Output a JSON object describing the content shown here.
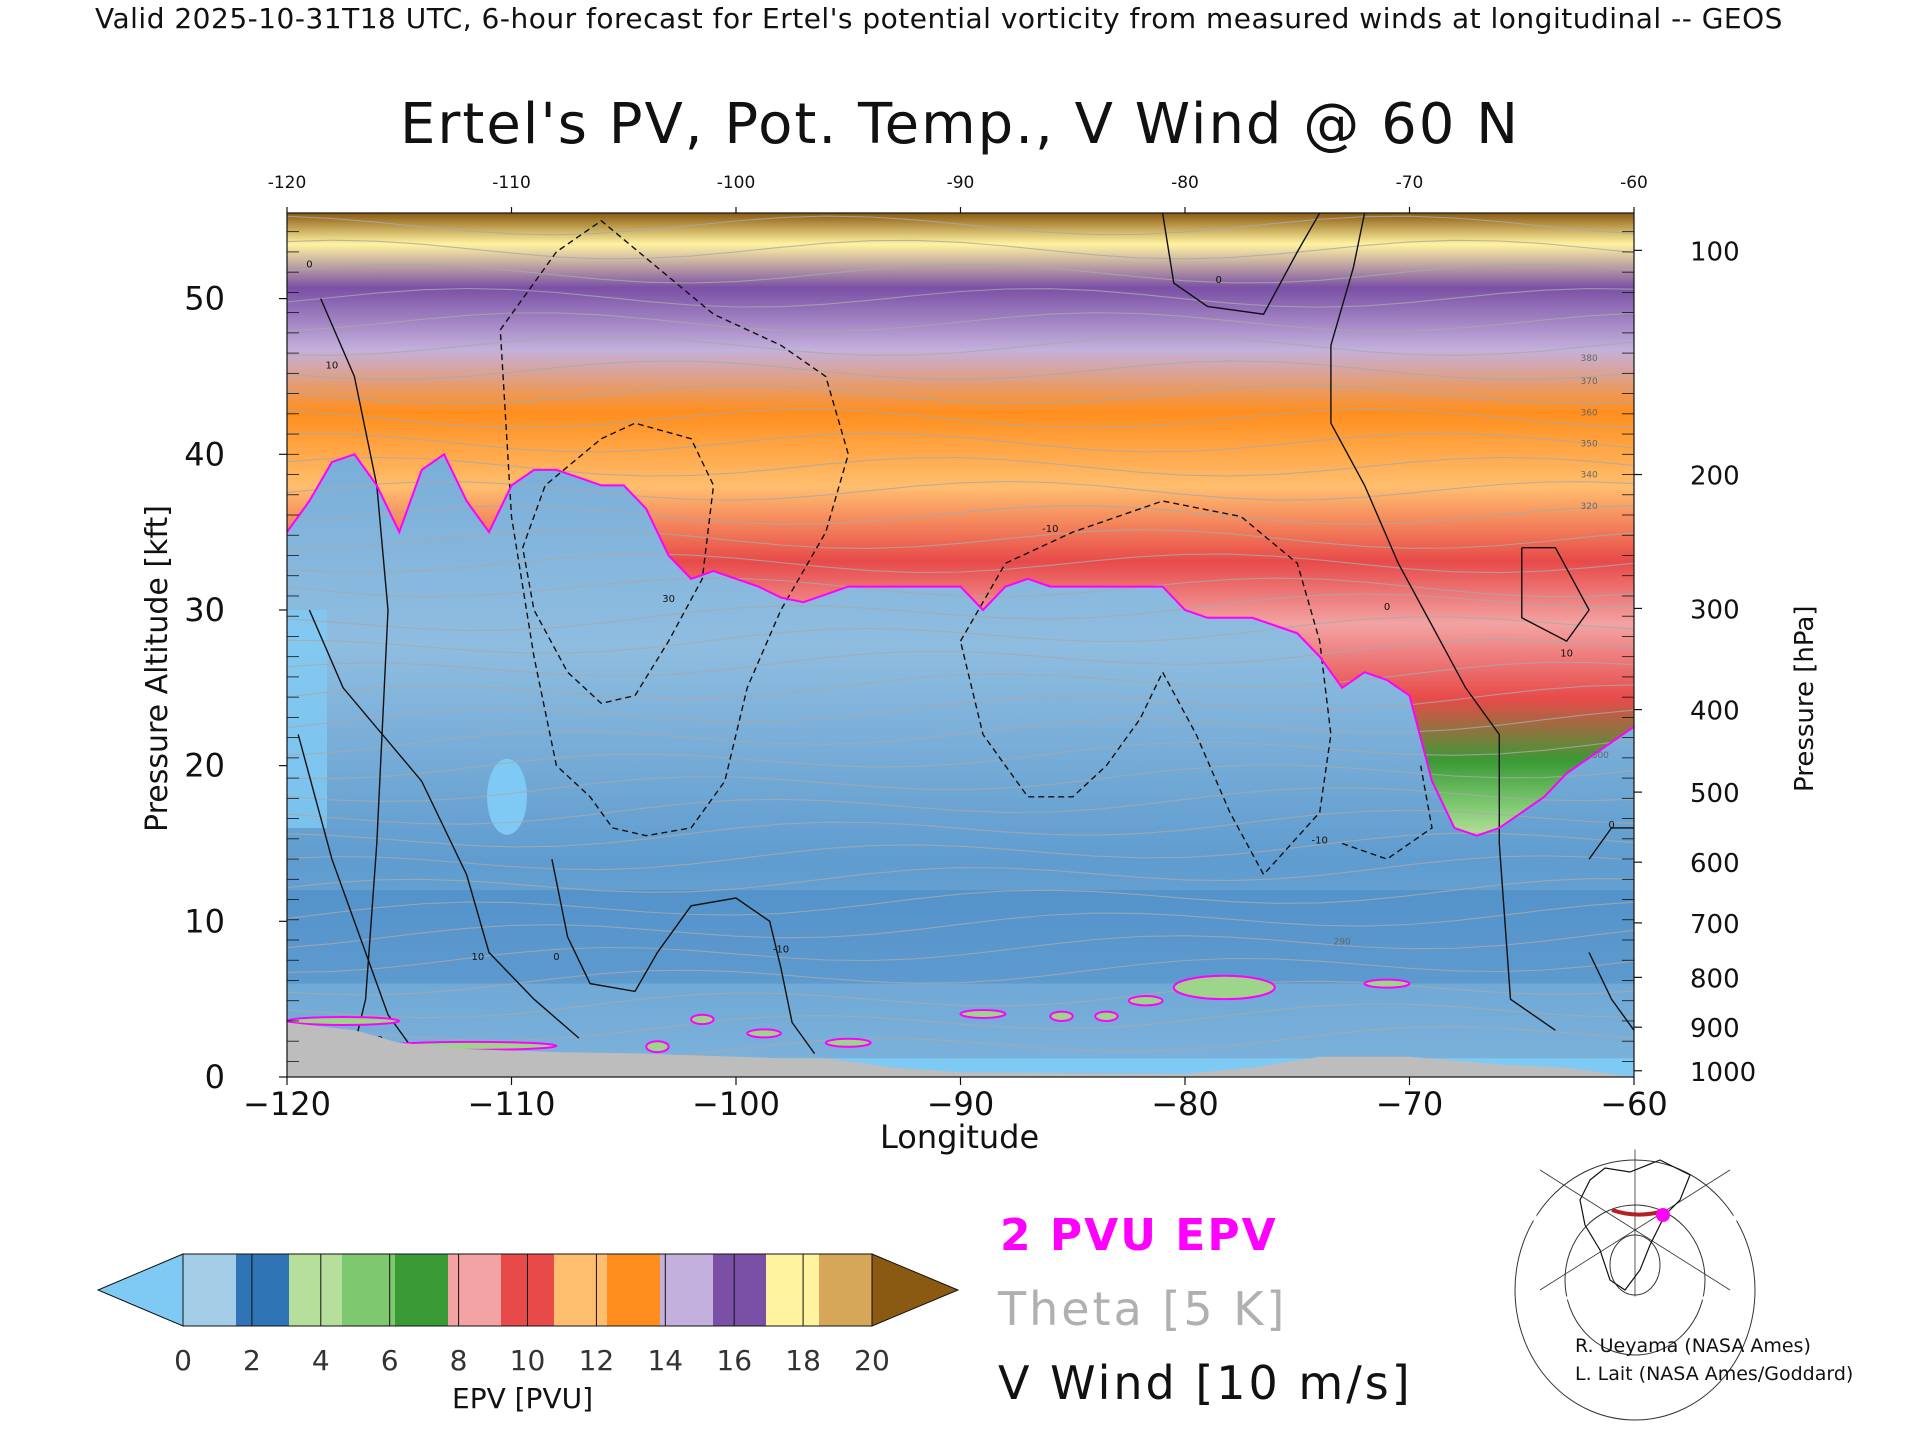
{
  "header": {
    "valid_line": "Valid 2025-10-31T18 UTC, 6-hour forecast for Ertel's potential vorticity from measured winds at longitudinal -- GEOS"
  },
  "chart_data": {
    "type": "heatmap",
    "title": "Ertel's PV, Pot. Temp., V Wind @ 60 N",
    "xlabel": "Longitude",
    "ylabel": "Pressure Altitude [kft]",
    "ylabel_right": "Pressure [hPa]",
    "xlim": [
      -120,
      -60
    ],
    "ylim": [
      0,
      55.5
    ],
    "x_ticks": [
      -120,
      -110,
      -100,
      -90,
      -80,
      -70,
      -60
    ],
    "x_tick_labels": [
      "−120",
      "−110",
      "−100",
      "−90",
      "−80",
      "−70",
      "−60"
    ],
    "x_top_tick_labels": [
      "-120",
      "-110",
      "-100",
      "-90",
      "-80",
      "-70",
      "-60"
    ],
    "y_ticks": [
      0,
      10,
      20,
      30,
      40,
      50
    ],
    "pressure_ticks": [
      {
        "hpa": 100,
        "label": "100",
        "kft": 53.1
      },
      {
        "hpa": 200,
        "label": "200",
        "kft": 38.7
      },
      {
        "hpa": 300,
        "label": "300",
        "kft": 30.1
      },
      {
        "hpa": 400,
        "label": "400",
        "kft": 23.6
      },
      {
        "hpa": 500,
        "label": "500",
        "kft": 18.3
      },
      {
        "hpa": 600,
        "label": "600",
        "kft": 13.8
      },
      {
        "hpa": 700,
        "label": "700",
        "kft": 9.9
      },
      {
        "hpa": 800,
        "label": "800",
        "kft": 6.4
      },
      {
        "hpa": 900,
        "label": "900",
        "kft": 3.2
      },
      {
        "hpa": 1000,
        "label": "1000",
        "kft": 0.4
      }
    ],
    "two_pvu_altitude_kft": {
      "lon": [
        -120,
        -119,
        -118,
        -117,
        -116,
        -115,
        -114,
        -113,
        -112,
        -111,
        -110,
        -109,
        -108,
        -107,
        -106,
        -105,
        -104,
        -103,
        -102,
        -101,
        -100,
        -99,
        -98,
        -97,
        -96,
        -95,
        -94,
        -93,
        -92,
        -91,
        -90,
        -89,
        -88,
        -87,
        -86,
        -85,
        -84,
        -83,
        -82,
        -81,
        -80,
        -79,
        -78,
        -77,
        -76,
        -75,
        -74,
        -73,
        -72,
        -71,
        -70,
        -69,
        -68,
        -67,
        -66,
        -65,
        -64,
        -63,
        -62,
        -61,
        -60
      ],
      "kft": [
        35,
        37,
        39.5,
        40,
        38,
        35,
        39,
        40,
        37,
        35,
        38,
        39,
        39,
        38.5,
        38,
        38,
        36.5,
        33.5,
        32,
        32.5,
        32,
        31.5,
        30.8,
        30.5,
        31,
        31.5,
        31.5,
        31.5,
        31.5,
        31.5,
        31.5,
        30,
        31.5,
        32,
        31.5,
        31.5,
        31.5,
        31.5,
        31.5,
        31.5,
        30,
        29.5,
        29.5,
        29.5,
        29,
        28.5,
        27,
        25,
        26,
        25.5,
        24.5,
        19,
        16,
        15.5,
        16,
        17,
        18,
        19.5,
        20.5,
        21.5,
        22.5
      ]
    },
    "colorbar": {
      "label": "EPV [PVU]",
      "ticks": [
        0,
        2,
        4,
        6,
        8,
        10,
        12,
        14,
        16,
        18,
        20
      ],
      "under_color": "#7fcaf4",
      "over_color": "#8a5a12",
      "colors": [
        "#a3cde7",
        "#2f74b5",
        "#b5df9a",
        "#7ec870",
        "#3a9a35",
        "#f3a3a3",
        "#e84a4a",
        "#ffbe6e",
        "#ff8e1e",
        "#c4b0dc",
        "#7a50a6",
        "#fff3a0",
        "#d6a758"
      ]
    },
    "legend": [
      {
        "label": "2 PVU EPV",
        "color": "#ff00ff"
      },
      {
        "label": "Theta [5 K]",
        "color": "#b0b0b0"
      },
      {
        "label": "V Wind [10 m/s]",
        "color": "#111111"
      }
    ],
    "theta_labels": [
      "380",
      "370",
      "360",
      "350",
      "340",
      "320",
      "300",
      "290"
    ],
    "vwind_labels": [
      "0",
      "10",
      "-10",
      "30"
    ],
    "grid": false
  },
  "credits": {
    "line1": "R. Ueyama (NASA Ames)",
    "line2": "L. Lait (NASA Ames/Goddard)"
  },
  "inset_map": {
    "line_color": "#b22222",
    "marker_color": "#ff00ff"
  }
}
